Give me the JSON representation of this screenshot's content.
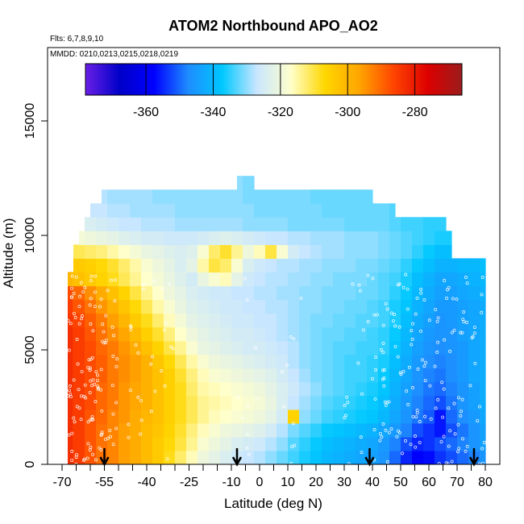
{
  "chart_data": {
    "type": "heatmap",
    "title": "ATOM2 Northbound APO_AO2",
    "subtitle_flights": "Flts: 6,7,8,9,10",
    "subtitle_dates": "MMDD: 0210,0213,0215,0218,0219",
    "xlabel": "Latitude (deg N)",
    "ylabel": "Altitude (m)",
    "xlim": [
      -70,
      82
    ],
    "ylim": [
      0,
      17500
    ],
    "x_ticks": [
      -70,
      -55,
      -40,
      -25,
      -10,
      0,
      10,
      20,
      30,
      40,
      50,
      60,
      70,
      80
    ],
    "y_ticks": [
      0,
      5000,
      10000,
      15000
    ],
    "colorbar": {
      "range": [
        -378,
        -266
      ],
      "ticks": [
        -360,
        -340,
        -320,
        -300,
        -280
      ],
      "colors": [
        "#6a1fe6",
        "#0000c8",
        "#0000ff",
        "#1e8cff",
        "#00c8ff",
        "#c8e6ff",
        "#ffffcc",
        "#ffd700",
        "#ffa500",
        "#ff4500",
        "#dc0000",
        "#9b1c1c"
      ]
    },
    "arrows_latitude": [
      -55,
      -8,
      39,
      76
    ],
    "latitude_bins": [
      -68.5,
      -64,
      -60,
      -56,
      -52,
      -48,
      -44,
      -40,
      -36,
      -32,
      -28,
      -24,
      -20,
      -16,
      -12,
      -8,
      -4,
      0,
      4,
      8,
      12,
      16,
      20,
      24,
      28,
      32,
      36,
      40,
      44,
      48,
      52,
      56,
      60,
      64,
      68,
      72,
      76,
      80
    ],
    "altitude_bins": [
      300,
      900,
      1500,
      2100,
      2700,
      3300,
      3900,
      4500,
      5100,
      5700,
      6300,
      6900,
      7500,
      8100,
      8700,
      9300,
      9900,
      10500,
      11100,
      11700,
      12300
    ],
    "values_by_altitude": [
      [
        -283,
        -285,
        -288,
        -291,
        -293,
        -296,
        -298,
        -301,
        -304,
        -308,
        -312,
        -316,
        -320,
        -322,
        -324,
        -326,
        -327,
        -328,
        -330,
        -332,
        -334,
        -336,
        -338,
        -340,
        -341,
        -342,
        -343,
        -344,
        -346,
        -350,
        -355,
        -358,
        -357,
        -354,
        -352,
        -350,
        -348,
        -346
      ],
      [
        -283,
        -285,
        -288,
        -291,
        -293,
        -296,
        -298,
        -301,
        -304,
        -307,
        -310,
        -314,
        -318,
        -320,
        -322,
        -324,
        -325,
        -326,
        -328,
        -330,
        -333,
        -335,
        -337,
        -339,
        -340,
        -341,
        -342,
        -343,
        -345,
        -348,
        -352,
        -355,
        -354,
        -352,
        -350,
        -348,
        -346,
        -344
      ],
      [
        -283,
        -285,
        -288,
        -291,
        -293,
        -296,
        -298,
        -301,
        -303,
        -306,
        -309,
        -313,
        -316,
        -318,
        -320,
        -321,
        -322,
        -323,
        -325,
        -328,
        -331,
        -333,
        -335,
        -337,
        -338,
        -339,
        -340,
        -341,
        -343,
        -345,
        -348,
        -352,
        -354,
        -356,
        -352,
        -349,
        -346,
        -344
      ],
      [
        -283,
        -285,
        -288,
        -290,
        -293,
        -295,
        -298,
        -300,
        -302,
        -305,
        -308,
        -311,
        -314,
        -316,
        -317,
        -318,
        -319,
        -320,
        -322,
        -325,
        -306,
        -330,
        -332,
        -334,
        -335,
        -336,
        -337,
        -338,
        -340,
        -343,
        -346,
        -349,
        -351,
        -356,
        -350,
        -347,
        -345,
        -343
      ],
      [
        -283,
        -285,
        -287,
        -290,
        -292,
        -295,
        -297,
        -299,
        -302,
        -305,
        -308,
        -311,
        -314,
        -315,
        -316,
        -317,
        -318,
        -319,
        -321,
        -324,
        -327,
        -329,
        -331,
        -333,
        -334,
        -335,
        -336,
        -337,
        -339,
        -342,
        -345,
        -348,
        -350,
        -352,
        -349,
        -346,
        -344,
        -342
      ],
      [
        -283,
        -285,
        -287,
        -290,
        -292,
        -295,
        -297,
        -299,
        -302,
        -305,
        -308,
        -312,
        -315,
        -316,
        -317,
        -318,
        -319,
        -320,
        -322,
        -324,
        -326,
        -328,
        -330,
        -332,
        -333,
        -334,
        -335,
        -336,
        -338,
        -341,
        -344,
        -347,
        -349,
        -350,
        -348,
        -346,
        -344,
        -342
      ],
      [
        -283,
        -285,
        -287,
        -289,
        -292,
        -294,
        -296,
        -299,
        -302,
        -305,
        -309,
        -313,
        -316,
        -318,
        -319,
        -320,
        -321,
        -322,
        -323,
        -325,
        -327,
        -329,
        -331,
        -332,
        -333,
        -334,
        -334,
        -335,
        -337,
        -340,
        -343,
        -346,
        -348,
        -349,
        -347,
        -345,
        -343,
        -342
      ],
      [
        -283,
        -285,
        -287,
        -289,
        -292,
        -294,
        -296,
        -299,
        -303,
        -307,
        -311,
        -315,
        -318,
        -320,
        -321,
        -322,
        -323,
        -324,
        -325,
        -326,
        -328,
        -330,
        -331,
        -332,
        -333,
        -334,
        -334,
        -335,
        -336,
        -339,
        -342,
        -345,
        -347,
        -348,
        -347,
        -345,
        -343,
        -342
      ],
      [
        -283,
        -285,
        -287,
        -290,
        -292,
        -295,
        -298,
        -302,
        -306,
        -310,
        -314,
        -318,
        -321,
        -322,
        -323,
        -324,
        -325,
        -325,
        -326,
        -327,
        -328,
        -330,
        -331,
        -332,
        -333,
        -333,
        -334,
        -334,
        -335,
        -338,
        -341,
        -344,
        -346,
        -347,
        -346,
        -345,
        -343,
        -342
      ],
      [
        -283,
        -285,
        -288,
        -291,
        -294,
        -297,
        -301,
        -305,
        -309,
        -313,
        -317,
        -320,
        -322,
        -323,
        -324,
        -325,
        -325,
        -326,
        -327,
        -328,
        -329,
        -330,
        -331,
        -332,
        -332,
        -333,
        -333,
        -334,
        -335,
        -337,
        -340,
        -343,
        -345,
        -346,
        -346,
        -344,
        -343,
        -342
      ],
      [
        -284,
        -286,
        -289,
        -292,
        -296,
        -300,
        -304,
        -308,
        -312,
        -316,
        -319,
        -322,
        -323,
        -324,
        -325,
        -326,
        -326,
        -327,
        -327,
        -328,
        -329,
        -330,
        -331,
        -331,
        -332,
        -332,
        -333,
        -333,
        -334,
        -336,
        -339,
        -342,
        -344,
        -346,
        -345,
        -344,
        -343,
        -342
      ],
      [
        -285,
        -288,
        -291,
        -295,
        -299,
        -303,
        -307,
        -311,
        -315,
        -318,
        -321,
        -323,
        -324,
        -325,
        -326,
        -326,
        -327,
        -327,
        -328,
        -328,
        -329,
        -330,
        -330,
        -331,
        -331,
        -332,
        -332,
        -333,
        -334,
        -336,
        -338,
        -341,
        -343,
        -345,
        -345,
        -344,
        -343,
        -342
      ],
      [
        -287,
        -290,
        -294,
        -298,
        -302,
        -306,
        -310,
        -314,
        -317,
        -320,
        -322,
        -324,
        -325,
        -326,
        -326,
        -327,
        -327,
        -328,
        -328,
        -329,
        -329,
        -330,
        -330,
        -331,
        -331,
        -331,
        -332,
        -332,
        -333,
        -335,
        -337,
        -340,
        -342,
        -344,
        -344,
        -343,
        -342,
        -341
      ],
      [
        -300,
        -302,
        -304,
        -306,
        -308,
        -311,
        -314,
        -317,
        -319,
        -321,
        -323,
        -325,
        -321,
        -318,
        -316,
        -322,
        -326,
        -327,
        -328,
        -328,
        -329,
        -329,
        -330,
        -330,
        -331,
        -331,
        -331,
        -332,
        -333,
        -334,
        -336,
        -339,
        -341,
        -343,
        -343,
        -342,
        -341,
        -340
      ],
      [
        -303,
        -304,
        -305,
        -307,
        -309,
        -312,
        -315,
        -318,
        -320,
        -322,
        -324,
        -322,
        -315,
        -310,
        -312,
        -318,
        -324,
        -326,
        -327,
        -328,
        -328,
        -329,
        -329,
        -330,
        -330,
        -330,
        -331,
        -331,
        -332,
        -333,
        -335,
        -337,
        -339,
        -341,
        -341,
        -340,
        -340,
        -339
      ],
      [
        -310,
        -311,
        -312,
        -313,
        -315,
        -317,
        -319,
        -321,
        -322,
        -323,
        -324,
        -323,
        -318,
        -312,
        -309,
        -314,
        -320,
        -316,
        -310,
        -318,
        -325,
        -327,
        -328,
        -329,
        -329,
        -330,
        -330,
        -330,
        -331,
        -332,
        -333,
        -335,
        -337,
        -339,
        -339,
        -338,
        -338,
        -338
      ],
      [
        -318,
        -319,
        -320,
        -321,
        -322,
        -323,
        -324,
        -325,
        -325,
        -326,
        -326,
        -326,
        -325,
        -324,
        -323,
        -324,
        -325,
        -326,
        -327,
        -327,
        -328,
        -328,
        -329,
        -329,
        -329,
        -330,
        -330,
        -330,
        -331,
        -332,
        -333,
        -334,
        -335,
        -336,
        -336,
        -335,
        -335,
        -335
      ],
      [
        -322,
        -323,
        -324,
        -325,
        -326,
        -327,
        -327,
        -328,
        -328,
        -328,
        -329,
        -329,
        -329,
        -329,
        -329,
        -329,
        -330,
        -330,
        -330,
        -330,
        -331,
        -331,
        -331,
        -331,
        -331,
        -332,
        -332,
        -332,
        -332,
        -333,
        -334,
        -334,
        -335,
        -335,
        -335,
        -335,
        -335,
        -335
      ],
      [
        -325,
        -326,
        -327,
        -327,
        -328,
        -328,
        -329,
        -329,
        -329,
        -329,
        -330,
        -330,
        -330,
        -330,
        -330,
        -330,
        -330,
        -331,
        -331,
        -331,
        -331,
        -331,
        -331,
        -332,
        -332,
        -332,
        -332,
        -332,
        -332,
        -333,
        -333,
        -334,
        -334,
        -334,
        -334,
        -334,
        -334,
        -334
      ],
      [
        -327,
        -327,
        -328,
        -328,
        -329,
        -329,
        -329,
        -329,
        -330,
        -330,
        -330,
        -330,
        -330,
        -330,
        -330,
        -330,
        -331,
        -331,
        -331,
        -331,
        -331,
        -331,
        -332,
        -332,
        -332,
        -332,
        -332,
        -332,
        -332,
        -333,
        -333,
        -333,
        -333,
        -333,
        -333,
        -333,
        -333,
        -333
      ],
      [
        -328,
        -328,
        -329,
        -329,
        -329,
        -330,
        -330,
        -330,
        -330,
        -330,
        -330,
        -330,
        -330,
        -330,
        -330,
        -330,
        -331,
        -331,
        -331,
        -331,
        -331,
        -331,
        -331,
        -332,
        -332,
        -332,
        -332,
        -332,
        -332,
        -332,
        -332,
        -332,
        -332,
        -332,
        -332,
        -332,
        -332,
        -332
      ]
    ],
    "latitude_range_by_altitude": [
      [
        -68,
        80
      ],
      [
        -68,
        80
      ],
      [
        -68,
        80
      ],
      [
        -68,
        80
      ],
      [
        -68,
        80
      ],
      [
        -68,
        80
      ],
      [
        -68,
        80
      ],
      [
        -68,
        80
      ],
      [
        -68,
        80
      ],
      [
        -68,
        80
      ],
      [
        -68,
        80
      ],
      [
        -68,
        80
      ],
      [
        -68,
        80
      ],
      [
        -68,
        80
      ],
      [
        -66,
        80
      ],
      [
        -66,
        68
      ],
      [
        -64,
        68
      ],
      [
        -62,
        66
      ],
      [
        -60,
        48
      ],
      [
        -56,
        40
      ],
      [
        -8,
        -2
      ]
    ]
  }
}
